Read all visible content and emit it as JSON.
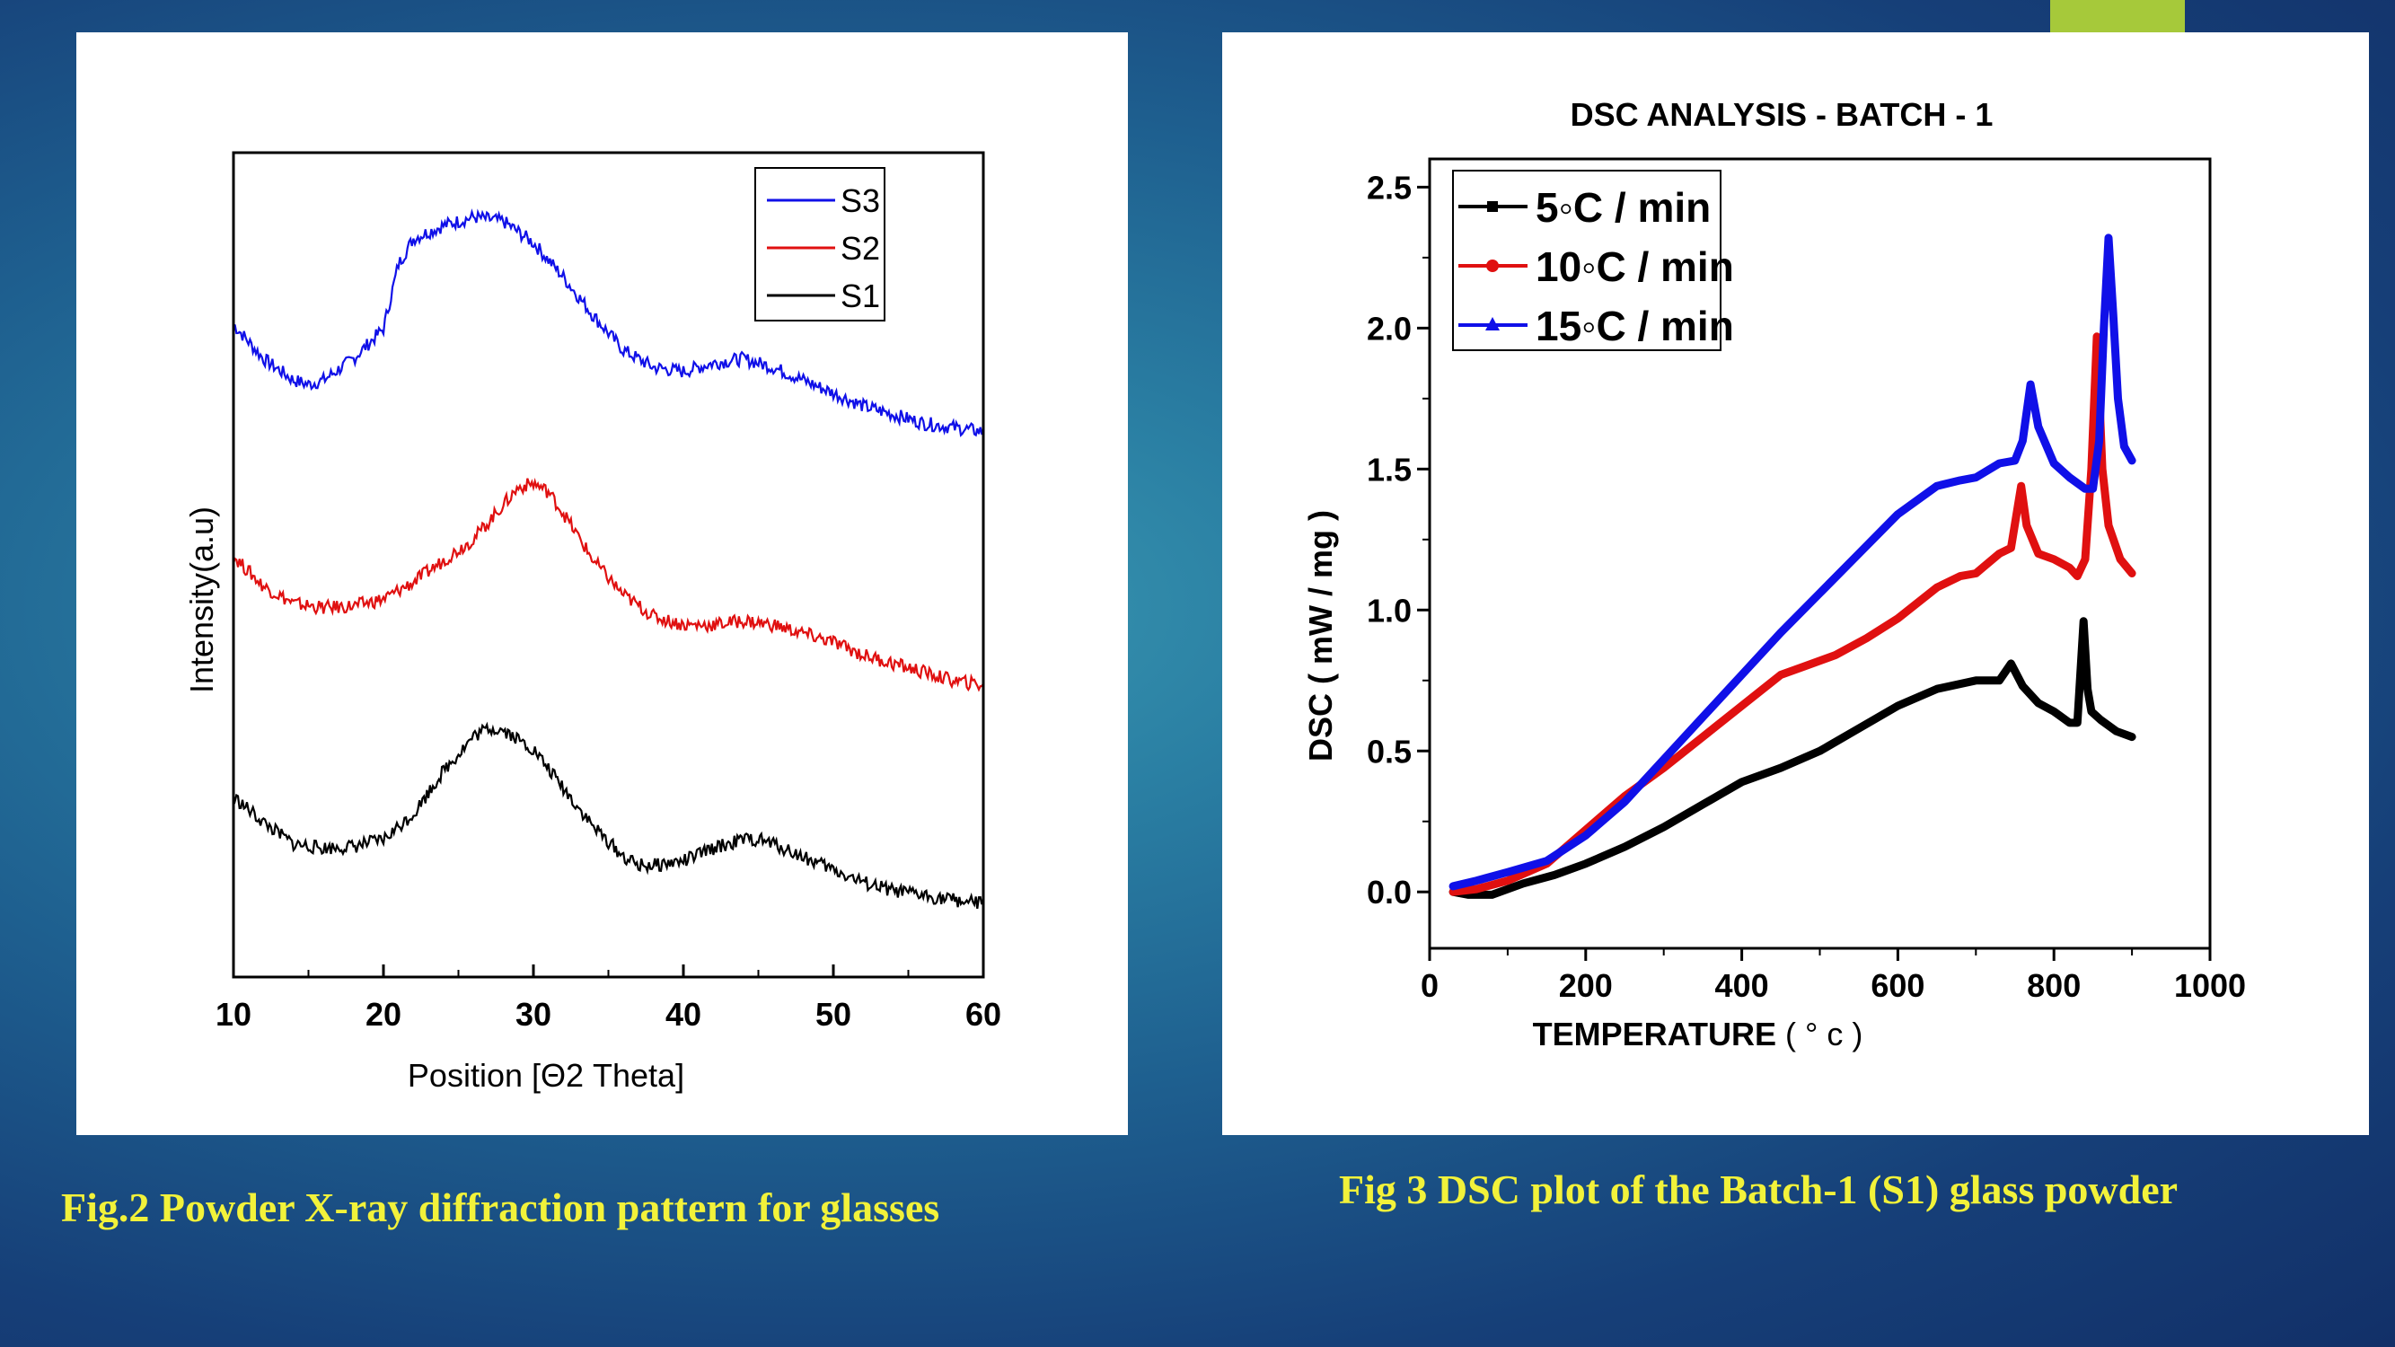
{
  "captions": {
    "left": "Fig.2 Powder X-ray diffraction pattern for glasses",
    "right": "Fig 3 DSC plot of the Batch-1 (S1) glass powder"
  },
  "colors": {
    "caption": "#f2f23a",
    "accent_bar": "#a6c93a",
    "S1": "#000000",
    "S2": "#e01010",
    "S3": "#1010e8"
  },
  "chart_data": [
    {
      "id": "xrd",
      "type": "line",
      "title": "",
      "xlabel": "Position [Θ2 Theta]",
      "ylabel": "Intensity(a.u)",
      "xlim": [
        10,
        60
      ],
      "xticks": [
        10,
        20,
        30,
        40,
        50,
        60
      ],
      "y_tick_labels": false,
      "legend_position": "top-right",
      "grid": false,
      "note_y": "arbitrary intensity units; curves vertically offset",
      "series": [
        {
          "name": "S3",
          "color": "#1010e8",
          "x": [
            10,
            12,
            14,
            15,
            16,
            18,
            20,
            21,
            22,
            24,
            26,
            28,
            30,
            32,
            34,
            36,
            38,
            40,
            42,
            44,
            46,
            48,
            50,
            52,
            54,
            56,
            58,
            60
          ],
          "y": [
            8.6,
            8.2,
            7.95,
            7.9,
            7.95,
            8.2,
            8.55,
            9.3,
            9.6,
            9.75,
            9.85,
            9.8,
            9.55,
            9.15,
            8.7,
            8.3,
            8.1,
            8.05,
            8.15,
            8.2,
            8.1,
            7.95,
            7.8,
            7.65,
            7.55,
            7.45,
            7.4,
            7.35
          ]
        },
        {
          "name": "S2",
          "color": "#e01010",
          "x": [
            10,
            12,
            14,
            16,
            18,
            20,
            22,
            24,
            26,
            28,
            29,
            30,
            31,
            32,
            34,
            36,
            38,
            40,
            42,
            44,
            46,
            48,
            50,
            52,
            54,
            56,
            58,
            60
          ],
          "y": [
            5.9,
            5.55,
            5.35,
            5.3,
            5.32,
            5.4,
            5.6,
            5.85,
            6.1,
            6.5,
            6.7,
            6.75,
            6.65,
            6.4,
            5.85,
            5.45,
            5.2,
            5.1,
            5.1,
            5.15,
            5.1,
            5.0,
            4.9,
            4.75,
            4.65,
            4.55,
            4.45,
            4.4
          ]
        },
        {
          "name": "S1",
          "color": "#000000",
          "x": [
            10,
            12,
            14,
            16,
            18,
            20,
            22,
            24,
            26,
            27,
            28,
            30,
            32,
            34,
            36,
            37,
            38,
            40,
            42,
            44,
            45,
            46,
            48,
            50,
            52,
            54,
            56,
            58,
            60
          ],
          "y": [
            3.1,
            2.8,
            2.55,
            2.5,
            2.52,
            2.6,
            2.9,
            3.4,
            3.8,
            3.9,
            3.88,
            3.65,
            3.2,
            2.75,
            2.4,
            2.3,
            2.3,
            2.35,
            2.5,
            2.6,
            2.6,
            2.55,
            2.4,
            2.25,
            2.1,
            2.0,
            1.95,
            1.9,
            1.85
          ]
        }
      ]
    },
    {
      "id": "dsc",
      "type": "line",
      "title": "DSC ANALYSIS - BATCH - 1",
      "xlabel_main": "TEMPERATURE",
      "xlabel_unit": "( ° c )",
      "ylabel": "DSC ( mW / mg )",
      "xlim": [
        0,
        1000
      ],
      "ylim": [
        -0.2,
        2.6
      ],
      "xticks": [
        0,
        200,
        400,
        600,
        800,
        1000
      ],
      "yticks": [
        0.0,
        0.5,
        1.0,
        1.5,
        2.0,
        2.5
      ],
      "x_tick_labels": [
        "0",
        "200",
        "400",
        "600",
        "800",
        "1000"
      ],
      "y_tick_labels": [
        "0.0",
        "0.5",
        "1.0",
        "1.5",
        "2.0",
        "2.5"
      ],
      "legend_position": "top-left",
      "grid": false,
      "series": [
        {
          "name": "5◦C / min",
          "color": "#000000",
          "marker": "square",
          "x": [
            30,
            50,
            80,
            120,
            160,
            200,
            250,
            300,
            350,
            400,
            450,
            500,
            550,
            600,
            650,
            700,
            730,
            745,
            760,
            780,
            800,
            820,
            830,
            838,
            843,
            848,
            860,
            880,
            900
          ],
          "y": [
            0.0,
            -0.01,
            -0.01,
            0.03,
            0.06,
            0.1,
            0.16,
            0.23,
            0.31,
            0.39,
            0.44,
            0.5,
            0.58,
            0.66,
            0.72,
            0.75,
            0.75,
            0.81,
            0.73,
            0.67,
            0.64,
            0.6,
            0.6,
            0.96,
            0.72,
            0.64,
            0.61,
            0.57,
            0.55
          ]
        },
        {
          "name": "10◦C / min",
          "color": "#e01010",
          "marker": "circle",
          "x": [
            30,
            60,
            100,
            150,
            200,
            250,
            300,
            350,
            400,
            450,
            480,
            520,
            560,
            600,
            650,
            680,
            700,
            730,
            745,
            758,
            765,
            780,
            800,
            820,
            830,
            840,
            848,
            855,
            862,
            870,
            885,
            900
          ],
          "y": [
            0.0,
            0.01,
            0.04,
            0.1,
            0.22,
            0.34,
            0.44,
            0.55,
            0.66,
            0.77,
            0.8,
            0.84,
            0.9,
            0.97,
            1.08,
            1.12,
            1.13,
            1.2,
            1.22,
            1.44,
            1.3,
            1.2,
            1.18,
            1.15,
            1.12,
            1.18,
            1.5,
            1.97,
            1.5,
            1.3,
            1.18,
            1.13
          ]
        },
        {
          "name": "15◦C / min",
          "color": "#1010e8",
          "marker": "triangle",
          "x": [
            30,
            60,
            100,
            150,
            200,
            250,
            300,
            350,
            400,
            450,
            500,
            550,
            600,
            650,
            680,
            700,
            730,
            750,
            760,
            770,
            780,
            800,
            820,
            840,
            850,
            858,
            864,
            870,
            876,
            882,
            890,
            900
          ],
          "y": [
            0.02,
            0.04,
            0.07,
            0.11,
            0.2,
            0.32,
            0.47,
            0.62,
            0.77,
            0.92,
            1.06,
            1.2,
            1.34,
            1.44,
            1.46,
            1.47,
            1.52,
            1.53,
            1.6,
            1.8,
            1.65,
            1.52,
            1.47,
            1.43,
            1.43,
            1.6,
            2.0,
            2.32,
            2.05,
            1.75,
            1.58,
            1.53
          ]
        }
      ]
    }
  ]
}
